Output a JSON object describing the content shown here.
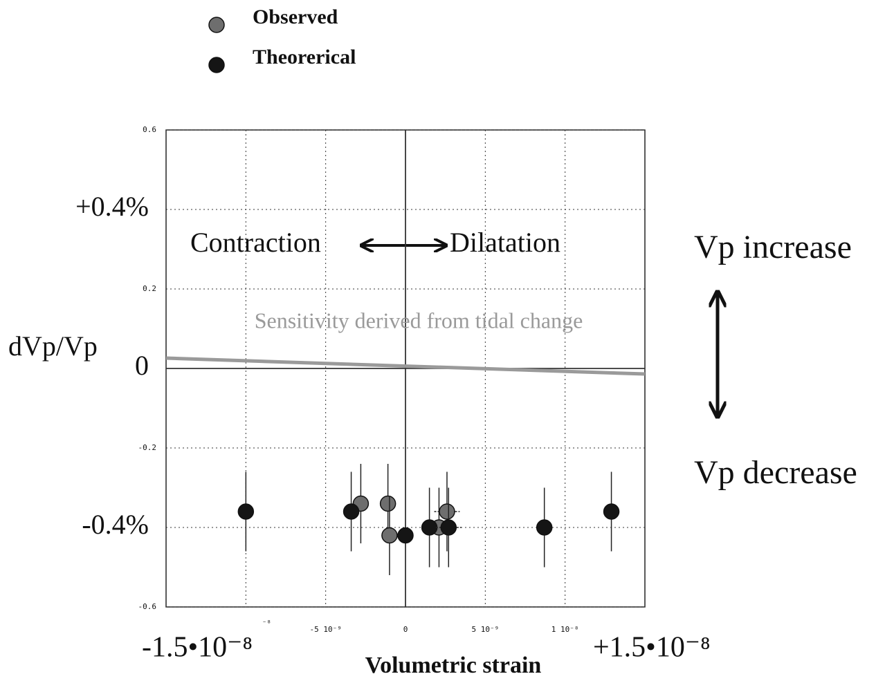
{
  "chart_data": {
    "type": "scatter",
    "xlabel": "Volumetric strain",
    "ylabel": "dVp/Vp",
    "xlim": [
      -1.5e-08,
      1.5e-08
    ],
    "ylim": [
      -0.6,
      0.6
    ],
    "xticks": [
      {
        "value": -1e-08,
        "label": "⁻⁸"
      },
      {
        "value": -5e-09,
        "label": "-5 10⁻⁹"
      },
      0,
      {
        "value": 5e-09,
        "label": "5 10⁻⁹"
      },
      {
        "value": 1e-08,
        "label": "1 10⁻⁸"
      }
    ],
    "xticks_major": [
      {
        "value": -1.5e-08,
        "label": "-1.5•10⁻⁸"
      },
      {
        "value": 1.5e-08,
        "label": "+1.5•10⁻⁸"
      }
    ],
    "yticks": [
      0.6,
      0.2,
      -0.2,
      -0.6
    ],
    "yticks_major": [
      {
        "value": 0.4,
        "label": "+0.4%"
      },
      0,
      {
        "value": -0.4,
        "label": "-0.4%"
      }
    ],
    "grid": true,
    "series": [
      {
        "name": "Observed",
        "color": "#6e6e6e",
        "x": [
          -2.8e-09,
          -1.1e-09,
          -1e-09,
          2.1e-09,
          2.6e-09
        ],
        "values": [
          -0.34,
          -0.34,
          -0.42,
          -0.4,
          -0.36
        ],
        "xerr": [
          5e-10,
          5e-10,
          5e-10,
          5e-10,
          8e-10
        ],
        "yerr": [
          0.1,
          0.1,
          0.1,
          0.1,
          0.1
        ]
      },
      {
        "name": "Theorerical",
        "color": "#151515",
        "x": [
          -1e-08,
          -3.4e-09,
          0,
          1.5e-09,
          2.7e-09,
          8.7e-09,
          1.29e-08
        ],
        "values": [
          -0.36,
          -0.36,
          -0.42,
          -0.4,
          -0.4,
          -0.4,
          -0.36
        ],
        "xerr": [
          0,
          5e-10,
          0,
          5e-10,
          8e-10,
          5e-10,
          0
        ],
        "yerr": [
          0.1,
          0.1,
          0,
          0.1,
          0.1,
          0.1,
          0.1
        ]
      }
    ],
    "sensitivity": {
      "label": "Sensitivity derived from tidal change",
      "color": "#9a9a9a",
      "x": [
        -1.5e-08,
        1.5e-08
      ],
      "values": [
        0.026,
        -0.014
      ]
    },
    "annotations": {
      "contraction": "Contraction",
      "dilatation": "Dilatation",
      "increase": "Vp increase",
      "decrease": "Vp decrease"
    }
  }
}
